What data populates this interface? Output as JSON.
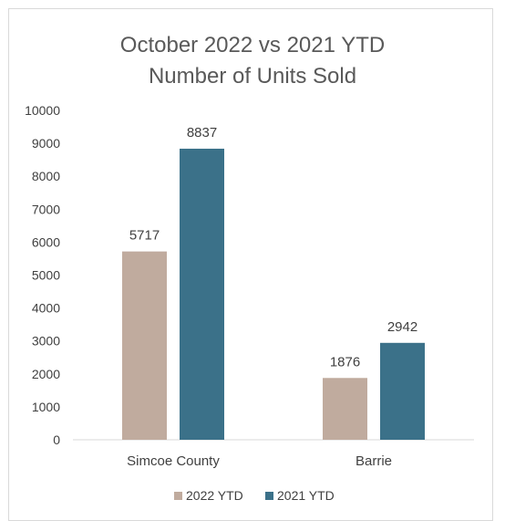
{
  "chart_data": {
    "type": "bar",
    "title": [
      "October 2022 vs 2021 YTD",
      "Number of Units Sold"
    ],
    "categories": [
      "Simcoe County",
      "Barrie"
    ],
    "series": [
      {
        "name": "2022 YTD",
        "values": [
          5717,
          1876
        ],
        "color": "#c0ab9e"
      },
      {
        "name": "2021 YTD",
        "values": [
          8837,
          2942
        ],
        "color": "#3b7189"
      }
    ],
    "ylim": [
      0,
      10000
    ],
    "yticks": [
      0,
      1000,
      2000,
      3000,
      4000,
      5000,
      6000,
      7000,
      8000,
      9000,
      10000
    ],
    "data_labels": true,
    "grid": false,
    "legend_position": "bottom"
  }
}
